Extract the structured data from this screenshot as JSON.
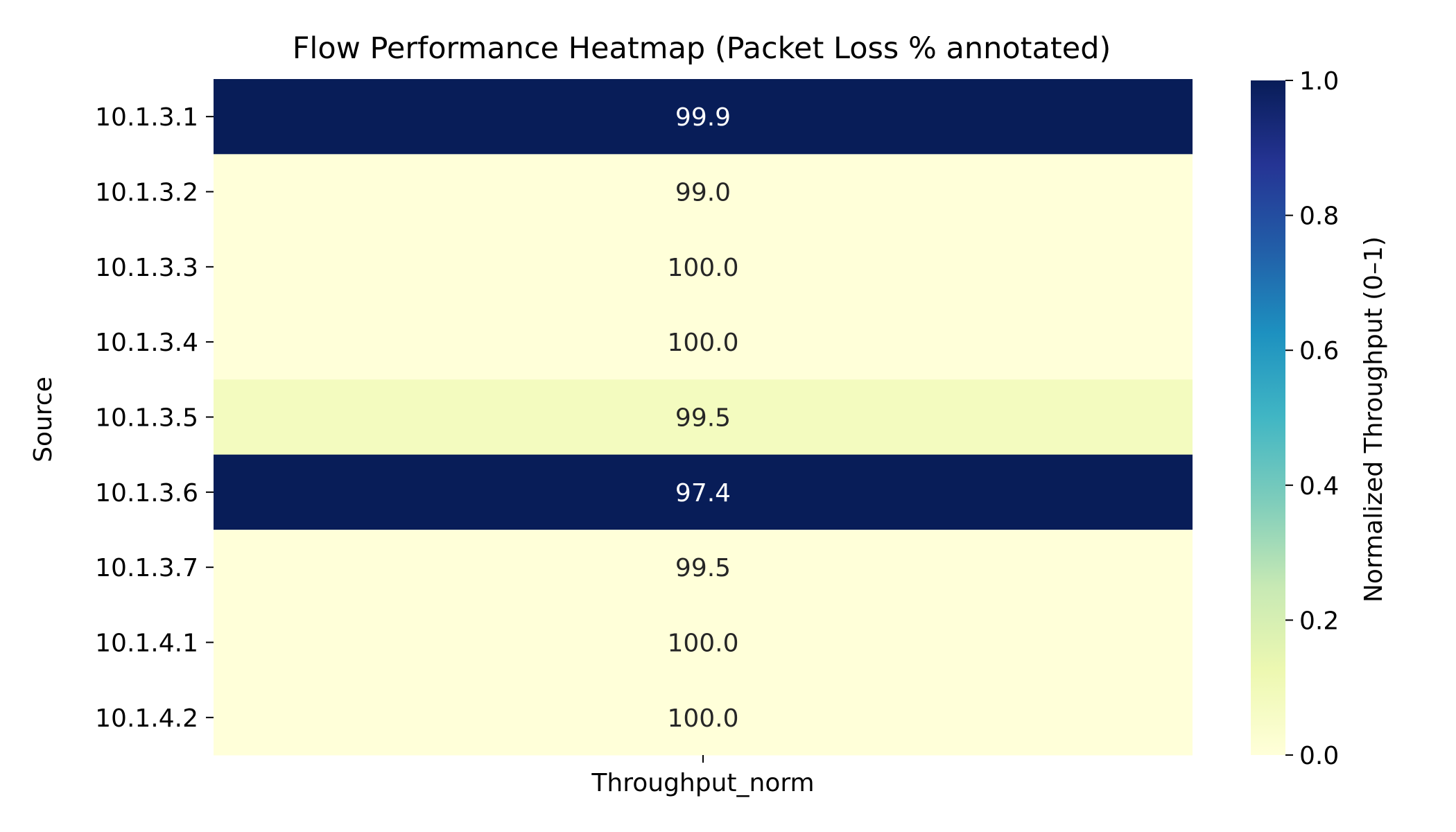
{
  "chart_data": {
    "type": "heatmap",
    "title": "Flow Performance Heatmap (Packet Loss % annotated)",
    "ylabel": "Source",
    "columns": [
      "Throughput_norm"
    ],
    "rows": [
      "10.1.3.1",
      "10.1.3.2",
      "10.1.3.3",
      "10.1.3.4",
      "10.1.3.5",
      "10.1.3.6",
      "10.1.3.7",
      "10.1.4.1",
      "10.1.4.2"
    ],
    "values": [
      1.0,
      0.0,
      0.0,
      0.0,
      0.08,
      1.0,
      0.0,
      0.0,
      0.0
    ],
    "annotations": [
      "99.9",
      "99.0",
      "100.0",
      "100.0",
      "99.5",
      "97.4",
      "99.5",
      "100.0",
      "100.0"
    ],
    "colorbar": {
      "label": "Normalized Throughput (0–1)",
      "range": [
        0,
        1
      ],
      "ticks": [
        "0.0",
        "0.2",
        "0.4",
        "0.6",
        "0.8",
        "1.0"
      ],
      "colormap": "YlGnBu",
      "stops": [
        "#ffffd9",
        "#edf8b1",
        "#c7e9b4",
        "#7fcdbb",
        "#41b6c4",
        "#1d91c0",
        "#225ea8",
        "#253494",
        "#081d58"
      ]
    }
  }
}
